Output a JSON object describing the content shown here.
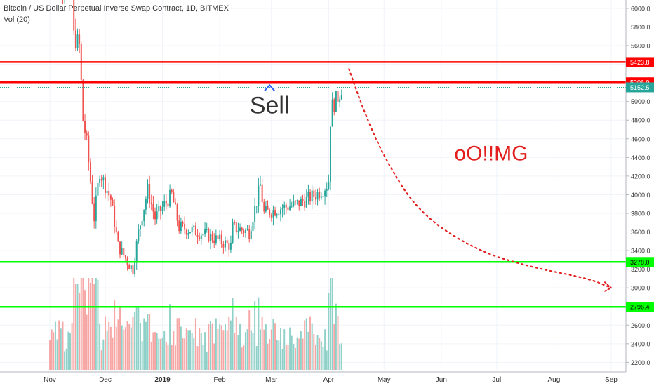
{
  "header": {
    "title": "Bitcoin / US Dollar Perpetual Inverse Swap Contract, 1D, BITMEX",
    "volume_label": "Vol (20)"
  },
  "annotations": {
    "sell": "Sell",
    "omg": "oO!!MG"
  },
  "colors": {
    "up": "#26a69a",
    "down": "#ef5350",
    "vol_up": "#8fd1c8",
    "vol_down": "#f6a7a5",
    "resistance": "#ff0000",
    "support": "#00ff00",
    "annotation_blue": "#2962ff",
    "annotation_red": "#e31e1e",
    "grid": "#f0f3fa"
  },
  "chart_data": {
    "type": "candlestick",
    "symbol": "Bitcoin / US Dollar Perpetual Inverse Swap Contract",
    "interval": "1D",
    "exchange": "BITMEX",
    "y_ticks": [
      2200,
      2400,
      2600,
      2800,
      3000,
      3200,
      3400,
      3600,
      3800,
      4000,
      4200,
      4400,
      4600,
      4800,
      5000,
      5200,
      5400,
      5600,
      5800,
      6000
    ],
    "y_tick_labels": [
      "2200.0",
      "2400.0",
      "2600.0",
      "2800.0",
      "3000.0",
      "3200.0",
      "3400.0",
      "3600.0",
      "3800.0",
      "4000.0",
      "4200.0",
      "4400.0",
      "4600.0",
      "4800.0",
      "5000.0",
      "5200.0",
      "5400.0",
      "5600.0",
      "5800.0",
      "6000.0"
    ],
    "ylim": [
      2120,
      6090
    ],
    "x_ticks": [
      {
        "label": "Nov",
        "date": "2018-11-01"
      },
      {
        "label": "Dec",
        "date": "2018-12-01"
      },
      {
        "label": "2019",
        "date": "2019-01-01"
      },
      {
        "label": "Feb",
        "date": "2019-02-01"
      },
      {
        "label": "Mar",
        "date": "2019-03-01"
      },
      {
        "label": "Apr",
        "date": "2019-04-01"
      },
      {
        "label": "May",
        "date": "2019-05-01"
      },
      {
        "label": "Jun",
        "date": "2019-06-01"
      },
      {
        "label": "Jul",
        "date": "2019-07-01"
      },
      {
        "label": "Aug",
        "date": "2019-08-01"
      },
      {
        "label": "Sep",
        "date": "2019-09-01"
      }
    ],
    "xlim": [
      "2018-10-05",
      "2019-09-09"
    ],
    "horizontal_lines": [
      {
        "value": 5423.8,
        "label": "5423.8",
        "color": "red"
      },
      {
        "value": 5206.9,
        "label": "5206.9",
        "color": "red"
      },
      {
        "value": 3278.0,
        "label": "3278.0",
        "color": "green"
      },
      {
        "value": 2796.4,
        "label": "2796.4",
        "color": "green"
      }
    ],
    "last_price": {
      "value": 5152.5,
      "label": "5152.5"
    },
    "anchors": [
      {
        "date": "2018-11-01",
        "value": 6330
      },
      {
        "date": "2018-11-13",
        "value": 6300
      },
      {
        "date": "2018-11-14",
        "value": 5700
      },
      {
        "date": "2018-11-17",
        "value": 5600
      },
      {
        "date": "2018-11-19",
        "value": 4800
      },
      {
        "date": "2018-11-21",
        "value": 4550
      },
      {
        "date": "2018-11-25",
        "value": 3750
      },
      {
        "date": "2018-11-28",
        "value": 4250
      },
      {
        "date": "2018-12-01",
        "value": 4100
      },
      {
        "date": "2018-12-04",
        "value": 3950
      },
      {
        "date": "2018-12-08",
        "value": 3450
      },
      {
        "date": "2018-12-14",
        "value": 3250
      },
      {
        "date": "2018-12-16",
        "value": 3200
      },
      {
        "date": "2018-12-19",
        "value": 3600
      },
      {
        "date": "2018-12-24",
        "value": 4050
      },
      {
        "date": "2018-12-28",
        "value": 3750
      },
      {
        "date": "2019-01-06",
        "value": 4000
      },
      {
        "date": "2019-01-10",
        "value": 3650
      },
      {
        "date": "2019-01-20",
        "value": 3600
      },
      {
        "date": "2019-01-27",
        "value": 3550
      },
      {
        "date": "2019-02-07",
        "value": 3450
      },
      {
        "date": "2019-02-08",
        "value": 3650
      },
      {
        "date": "2019-02-17",
        "value": 3600
      },
      {
        "date": "2019-02-23",
        "value": 4100
      },
      {
        "date": "2019-02-25",
        "value": 3800
      },
      {
        "date": "2019-03-05",
        "value": 3850
      },
      {
        "date": "2019-03-15",
        "value": 3900
      },
      {
        "date": "2019-03-25",
        "value": 4000
      },
      {
        "date": "2019-03-31",
        "value": 4100
      },
      {
        "date": "2019-04-01",
        "value": 4150
      },
      {
        "date": "2019-04-02",
        "value": 4800
      },
      {
        "date": "2019-04-03",
        "value": 4950
      },
      {
        "date": "2019-04-06",
        "value": 5050
      },
      {
        "date": "2019-04-08",
        "value": 5152.5
      }
    ],
    "volume": {
      "label": "Vol (20)",
      "ylim": [
        0,
        1
      ]
    },
    "projection_path": [
      {
        "date": "2019-04-12",
        "value": 5350
      },
      {
        "date": "2019-04-20",
        "value": 4900
      },
      {
        "date": "2019-05-01",
        "value": 4400
      },
      {
        "date": "2019-05-20",
        "value": 3800
      },
      {
        "date": "2019-06-20",
        "value": 3400
      },
      {
        "date": "2019-07-20",
        "value": 3220
      },
      {
        "date": "2019-08-20",
        "value": 3100
      },
      {
        "date": "2019-09-01",
        "value": 3000
      }
    ],
    "text_annotations": [
      {
        "text": "Sell",
        "date": "2019-02-28",
        "value": 4950
      },
      {
        "text": "oO!!MG",
        "date": "2019-06-28",
        "value": 4370
      }
    ]
  }
}
